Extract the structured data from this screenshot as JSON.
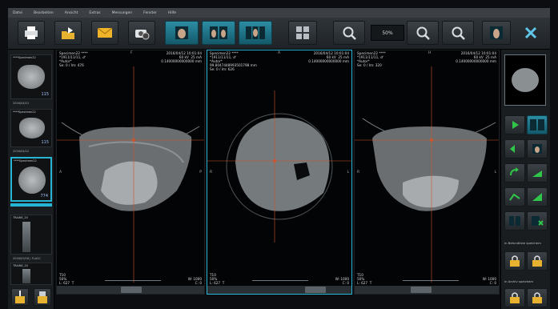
{
  "menu": [
    "Datei",
    "Bearbeiten",
    "Ansicht",
    "Extras",
    "Messungen",
    "Fenster",
    "Hilfe"
  ],
  "toolbar": {
    "zoom_value": "50%",
    "icons": [
      "print-icon",
      "export-icon",
      "mail-icon",
      "screenshot-icon",
      "view-single-icon",
      "view-double-icon",
      "view-triple-icon",
      "grid-icon",
      "zoom-fit-icon",
      "zoom-in-icon",
      "zoom-out-icon",
      "layout-icon",
      "close-icon"
    ]
  },
  "studies": [
    {
      "label": "****Specimen22",
      "number": "115",
      "date": "2016/04/12"
    },
    {
      "label": "****Specimen22",
      "number": "115",
      "date": "2016/04/12"
    },
    {
      "label": "****Specimen22",
      "number": "774",
      "date": ""
    },
    {
      "label": "TRAINE_20",
      "number": "",
      "date": "2016/03/16 | FLACC"
    },
    {
      "label": "TRAINE_20",
      "number": "",
      "date": ""
    }
  ],
  "viewports": [
    {
      "header_left": "Specimen22 ****\n*1911/11/11, ♂\n*Autor*\nSe: 0 / Im: 476",
      "header_right": "2016/04/12 10:01:04\n60 kV  25 mA\n0.14000000000000 mm",
      "footer_left": "T10\n50%\nL: 627  T",
      "footer_right": "W: 1000\nC: 0",
      "orient_top": "F",
      "orient_left": "A",
      "orient_right": "P"
    },
    {
      "header_left": "Specimen22 ****\n*1911/11/11, ♂\n*Autor*\n99.8047448993501798 mm\nSe: 0 / Im: 626",
      "header_right": "2016/04/12 10:01:04\n60 kV  25 mA\n0.14000000000000 mm",
      "footer_left": "T10\n50%\nL: 627  T",
      "footer_right": "W: 1000\nC: 0",
      "orient_top": "A",
      "orient_left": "R",
      "orient_right": "L"
    },
    {
      "header_left": "Specimen22 ****\n*1911/11/11, ♂\n*Autor*\nSe: 0 / Im: 320",
      "header_right": "2016/04/12 10:01:04\n60 kV  25 mA\n0.14000000000000 mm",
      "footer_left": "T10\n50%\nL: 627  T",
      "footer_right": "W: 1000\nC: 0",
      "orient_top": "H",
      "orient_left": "R",
      "orient_right": "L"
    }
  ],
  "right_panel": {
    "label_1": "In Befundliste speichern",
    "label_2": "In Archiv speichern"
  },
  "colors": {
    "accent": "#27b5d6",
    "crosshair": "#d0542a",
    "toolbar": "#2a2f33"
  }
}
